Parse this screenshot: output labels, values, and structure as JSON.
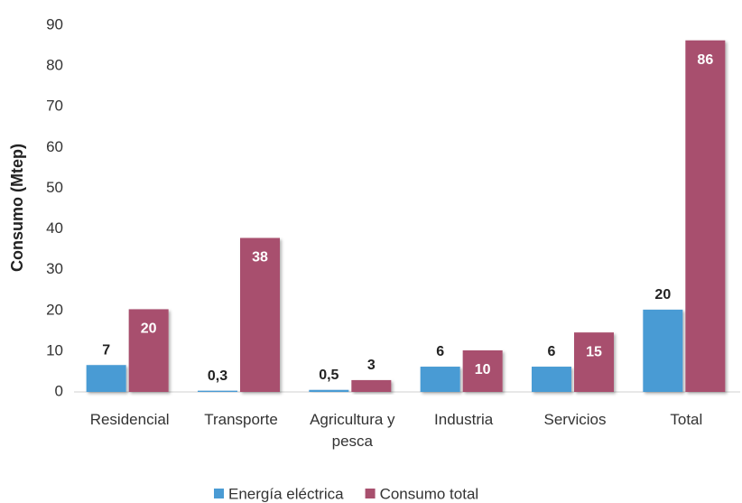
{
  "chart_data": {
    "type": "bar",
    "y_label": "Consumo (Mtep)",
    "categories": [
      "Residencial",
      "Transporte",
      "Agricultura y pesca",
      "Industria",
      "Servicios",
      "Total"
    ],
    "series": [
      {
        "name": "Energía eléctrica",
        "color": "#4a9bd4",
        "values": [
          6.6,
          0.3,
          0.5,
          6.2,
          6.2,
          20.2
        ],
        "value_labels": [
          "7",
          "0,3",
          "0,5",
          "6",
          "6",
          "20"
        ]
      },
      {
        "name": "Consumo total",
        "color": "#a8506e",
        "values": [
          20.3,
          37.8,
          2.9,
          10.2,
          14.6,
          86.3
        ],
        "value_labels": [
          "20",
          "38",
          "3",
          "10",
          "15",
          "86"
        ]
      }
    ],
    "ylim": [
      0,
      90
    ],
    "yticks": [
      0,
      10,
      20,
      30,
      40,
      50,
      60,
      70,
      80,
      90
    ],
    "grid": false,
    "legend": "bottom"
  }
}
